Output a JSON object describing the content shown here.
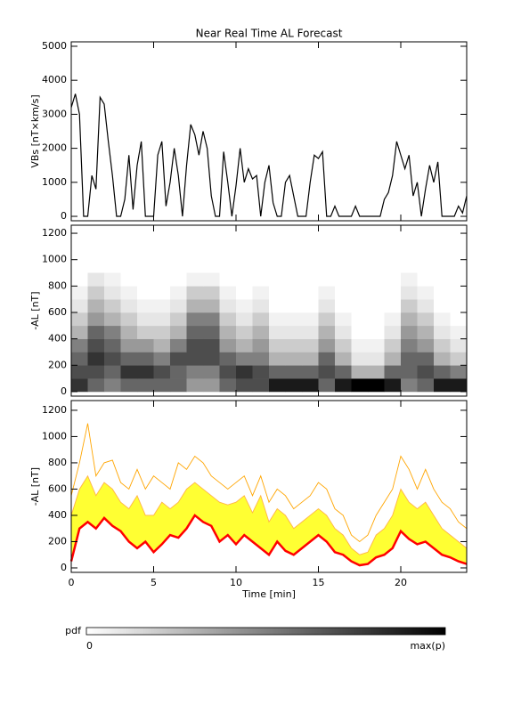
{
  "chart_data": [
    {
      "type": "line",
      "title": "Near Real Time AL Forecast",
      "ylabel": "VBs [nT×km/s]",
      "color": "#000000",
      "x": [
        0,
        0.25,
        0.5,
        0.75,
        1,
        1.25,
        1.5,
        1.75,
        2,
        2.25,
        2.5,
        2.75,
        3,
        3.25,
        3.5,
        3.75,
        4,
        4.25,
        4.5,
        4.75,
        5,
        5.25,
        5.5,
        5.75,
        6,
        6.25,
        6.5,
        6.75,
        7,
        7.25,
        7.5,
        7.75,
        8,
        8.25,
        8.5,
        8.75,
        9,
        9.25,
        9.5,
        9.75,
        10,
        10.25,
        10.5,
        10.75,
        11,
        11.25,
        11.5,
        11.75,
        12,
        12.25,
        12.5,
        12.75,
        13,
        13.25,
        13.5,
        13.75,
        14,
        14.25,
        14.5,
        14.75,
        15,
        15.25,
        15.5,
        15.75,
        16,
        16.25,
        16.5,
        16.75,
        17,
        17.25,
        17.5,
        17.75,
        18,
        18.25,
        18.5,
        18.75,
        19,
        19.25,
        19.5,
        19.75,
        20,
        20.25,
        20.5,
        20.75,
        21,
        21.25,
        21.5,
        21.75,
        22,
        22.25,
        22.5,
        22.75,
        23,
        23.25,
        23.5,
        23.75,
        24
      ],
      "values": [
        3200,
        3600,
        3000,
        0,
        0,
        1200,
        800,
        3500,
        3300,
        2200,
        1200,
        0,
        0,
        500,
        1800,
        200,
        1500,
        2200,
        0,
        0,
        0,
        1800,
        2200,
        300,
        1000,
        2000,
        1200,
        0,
        1500,
        2700,
        2400,
        1800,
        2500,
        2000,
        600,
        0,
        0,
        1900,
        1000,
        0,
        900,
        2000,
        1000,
        1400,
        1100,
        1200,
        0,
        1000,
        1500,
        400,
        0,
        0,
        1000,
        1200,
        600,
        0,
        0,
        0,
        1000,
        1800,
        1700,
        1900,
        0,
        0,
        300,
        0,
        0,
        0,
        0,
        300,
        0,
        0,
        0,
        0,
        0,
        0,
        500,
        700,
        1200,
        2200,
        1800,
        1400,
        1800,
        600,
        1000,
        0,
        800,
        1500,
        1000,
        1600,
        0,
        0,
        0,
        0,
        300,
        100,
        600
      ],
      "xlim": [
        0,
        24
      ],
      "xticks": [
        0,
        5,
        10,
        15,
        20
      ],
      "ylim": [
        -130,
        5130
      ],
      "yticks": [
        0,
        1000,
        2000,
        3000,
        4000,
        5000
      ]
    },
    {
      "type": "heatmap",
      "ylabel": "-AL [nT]",
      "cmap": [
        "#ffffff",
        "#000000"
      ],
      "xbins": [
        0,
        1,
        2,
        3,
        4,
        5,
        6,
        7,
        8,
        9,
        10,
        11,
        12,
        13,
        14,
        15,
        16,
        17,
        18,
        19,
        20,
        21,
        22,
        23,
        24
      ],
      "ybins": [
        0,
        100,
        200,
        300,
        400,
        500,
        600,
        700,
        800,
        900
      ],
      "z": [
        [
          0.8,
          0.6,
          0.5,
          0.6,
          0.6,
          0.6,
          0.6,
          0.4,
          0.4,
          0.6,
          0.7,
          0.7,
          0.9,
          0.9,
          0.9,
          0.6,
          0.9,
          1.0,
          1.0,
          0.9,
          0.5,
          0.6,
          0.9,
          0.9
        ],
        [
          0.7,
          0.7,
          0.6,
          0.8,
          0.8,
          0.7,
          0.6,
          0.5,
          0.5,
          0.7,
          0.8,
          0.7,
          0.6,
          0.6,
          0.6,
          0.7,
          0.6,
          0.3,
          0.3,
          0.6,
          0.6,
          0.7,
          0.6,
          0.5
        ],
        [
          0.6,
          0.8,
          0.7,
          0.6,
          0.6,
          0.5,
          0.7,
          0.7,
          0.7,
          0.6,
          0.5,
          0.5,
          0.3,
          0.3,
          0.3,
          0.6,
          0.3,
          0.1,
          0.1,
          0.3,
          0.6,
          0.6,
          0.3,
          0.2
        ],
        [
          0.5,
          0.7,
          0.6,
          0.4,
          0.4,
          0.3,
          0.5,
          0.7,
          0.7,
          0.4,
          0.3,
          0.4,
          0.2,
          0.2,
          0.2,
          0.4,
          0.2,
          0.05,
          0.05,
          0.2,
          0.5,
          0.4,
          0.2,
          0.1
        ],
        [
          0.3,
          0.6,
          0.5,
          0.3,
          0.2,
          0.2,
          0.3,
          0.6,
          0.6,
          0.3,
          0.2,
          0.3,
          0.1,
          0.1,
          0.1,
          0.3,
          0.1,
          0,
          0,
          0.1,
          0.4,
          0.3,
          0.1,
          0.05
        ],
        [
          0.2,
          0.4,
          0.3,
          0.2,
          0.1,
          0.1,
          0.2,
          0.5,
          0.5,
          0.2,
          0.1,
          0.2,
          0.05,
          0.05,
          0.05,
          0.2,
          0.05,
          0,
          0,
          0.05,
          0.3,
          0.2,
          0.05,
          0
        ],
        [
          0.1,
          0.3,
          0.2,
          0.1,
          0.05,
          0.05,
          0.1,
          0.3,
          0.3,
          0.1,
          0.05,
          0.1,
          0,
          0,
          0,
          0.1,
          0,
          0,
          0,
          0,
          0.2,
          0.1,
          0,
          0
        ],
        [
          0.05,
          0.2,
          0.1,
          0.05,
          0,
          0,
          0.05,
          0.2,
          0.2,
          0.05,
          0,
          0.05,
          0,
          0,
          0,
          0.05,
          0,
          0,
          0,
          0,
          0.1,
          0.05,
          0,
          0
        ],
        [
          0,
          0.1,
          0.05,
          0,
          0,
          0,
          0,
          0.05,
          0.05,
          0,
          0,
          0,
          0,
          0,
          0,
          0,
          0,
          0,
          0,
          0,
          0.05,
          0,
          0,
          0
        ]
      ],
      "xlim": [
        0,
        24
      ],
      "xticks": [
        0,
        5,
        10,
        15,
        20
      ],
      "ylim": [
        -34,
        1261
      ],
      "yticks": [
        0,
        200,
        400,
        600,
        800,
        1000,
        1200
      ],
      "colorbar": {
        "label": "pdf",
        "ticks": [
          0,
          {
            "value": 1,
            "label": "max(p)"
          }
        ]
      }
    },
    {
      "type": "band",
      "ylabel": "-AL [nT]",
      "xlabel": "Time [min]",
      "band": {
        "color": "#ffff33",
        "between": [
          0,
          1
        ]
      },
      "x": [
        0,
        0.5,
        1,
        1.5,
        2,
        2.5,
        3,
        3.5,
        4,
        4.5,
        5,
        5.5,
        6,
        6.5,
        7,
        7.5,
        8,
        8.5,
        9,
        9.5,
        10,
        10.5,
        11,
        11.5,
        12,
        12.5,
        13,
        13.5,
        14,
        14.5,
        15,
        15.5,
        16,
        16.5,
        17,
        17.5,
        18,
        18.5,
        19,
        19.5,
        20,
        20.5,
        21,
        21.5,
        22,
        22.5,
        23,
        23.5,
        24
      ],
      "series": [
        {
          "color": "#ff0000",
          "values": [
            50,
            300,
            350,
            300,
            380,
            320,
            280,
            200,
            150,
            200,
            120,
            180,
            250,
            230,
            300,
            400,
            350,
            320,
            200,
            250,
            180,
            250,
            200,
            150,
            100,
            200,
            130,
            100,
            150,
            200,
            250,
            200,
            120,
            100,
            50,
            20,
            30,
            80,
            100,
            150,
            280,
            220,
            180,
            200,
            150,
            100,
            80,
            50,
            30
          ]
        },
        {
          "color": "#ffb347",
          "values": [
            400,
            600,
            700,
            550,
            650,
            600,
            500,
            450,
            550,
            400,
            400,
            500,
            450,
            500,
            600,
            650,
            600,
            550,
            500,
            480,
            500,
            550,
            420,
            550,
            350,
            450,
            400,
            300,
            350,
            400,
            450,
            400,
            300,
            250,
            150,
            100,
            120,
            250,
            300,
            400,
            600,
            500,
            450,
            500,
            400,
            300,
            250,
            200,
            150
          ]
        },
        {
          "color": "#ffa500",
          "values": [
            550,
            800,
            1100,
            700,
            800,
            820,
            650,
            600,
            750,
            600,
            700,
            650,
            600,
            800,
            750,
            850,
            800,
            700,
            650,
            600,
            650,
            700,
            550,
            700,
            500,
            600,
            550,
            450,
            500,
            550,
            650,
            600,
            450,
            400,
            250,
            200,
            250,
            400,
            500,
            600,
            850,
            750,
            600,
            750,
            600,
            500,
            450,
            350,
            300
          ]
        }
      ],
      "xlim": [
        0,
        24
      ],
      "xticks": [
        0,
        5,
        10,
        15,
        20
      ],
      "ylim": [
        -34,
        1274
      ],
      "yticks": [
        0,
        200,
        400,
        600,
        800,
        1000,
        1200
      ]
    }
  ]
}
